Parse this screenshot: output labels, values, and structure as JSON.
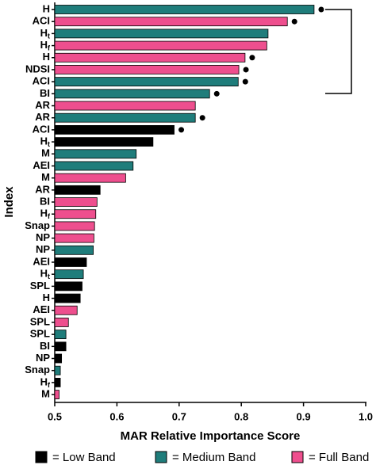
{
  "chart_data": {
    "type": "barh",
    "xlabel": "MAR Relative Importance Score",
    "ylabel": "Index",
    "categories": [
      "H",
      "ACI",
      "Ht",
      "Hf",
      "H",
      "NDSI",
      "ACI",
      "BI",
      "AR",
      "AR",
      "ACI",
      "Ht",
      "M",
      "AEI",
      "M",
      "AR",
      "BI",
      "Hf",
      "Snap",
      "NP",
      "NP",
      "AEI",
      "Ht",
      "SPL",
      "H",
      "AEI",
      "SPL",
      "SPL",
      "BI",
      "NP",
      "Snap",
      "Hf",
      "M"
    ],
    "series": [
      {
        "name": "= Low Band",
        "color": "#000000",
        "values": [
          null,
          null,
          null,
          null,
          null,
          null,
          null,
          null,
          null,
          null,
          0.692,
          0.658,
          null,
          null,
          null,
          0.573,
          null,
          null,
          null,
          null,
          null,
          0.551,
          null,
          0.544,
          0.541,
          null,
          null,
          null,
          0.518,
          0.511,
          null,
          0.509,
          null
        ]
      },
      {
        "name": "= Medium Band",
        "color": "#1f7d7b",
        "values": [
          0.917,
          null,
          0.843,
          null,
          null,
          null,
          0.795,
          0.749,
          null,
          0.726,
          null,
          null,
          0.631,
          0.626,
          null,
          null,
          null,
          null,
          null,
          null,
          0.562,
          null,
          0.546,
          null,
          null,
          null,
          null,
          0.518,
          null,
          null,
          0.509,
          null,
          null
        ]
      },
      {
        "name": "= Full Band",
        "color": "#ee4f8e",
        "values": [
          null,
          0.874,
          null,
          0.841,
          0.806,
          0.796,
          null,
          null,
          0.726,
          null,
          null,
          null,
          null,
          null,
          0.614,
          null,
          0.568,
          0.566,
          0.564,
          0.563,
          null,
          null,
          null,
          null,
          null,
          0.536,
          0.522,
          null,
          null,
          null,
          null,
          null,
          0.507
        ]
      }
    ],
    "marked": [
      true,
      true,
      false,
      false,
      true,
      true,
      true,
      true,
      false,
      true,
      true,
      false,
      false,
      false,
      false,
      false,
      false,
      false,
      false,
      false,
      false,
      false,
      false,
      false,
      false,
      false,
      false,
      false,
      false,
      false,
      false,
      false,
      false
    ],
    "xlim": [
      0.5,
      1.0
    ],
    "xticks": [
      0.5,
      0.6,
      0.7,
      0.8,
      0.9,
      {
        "value": 1.0,
        "label": "1.0"
      }
    ]
  }
}
